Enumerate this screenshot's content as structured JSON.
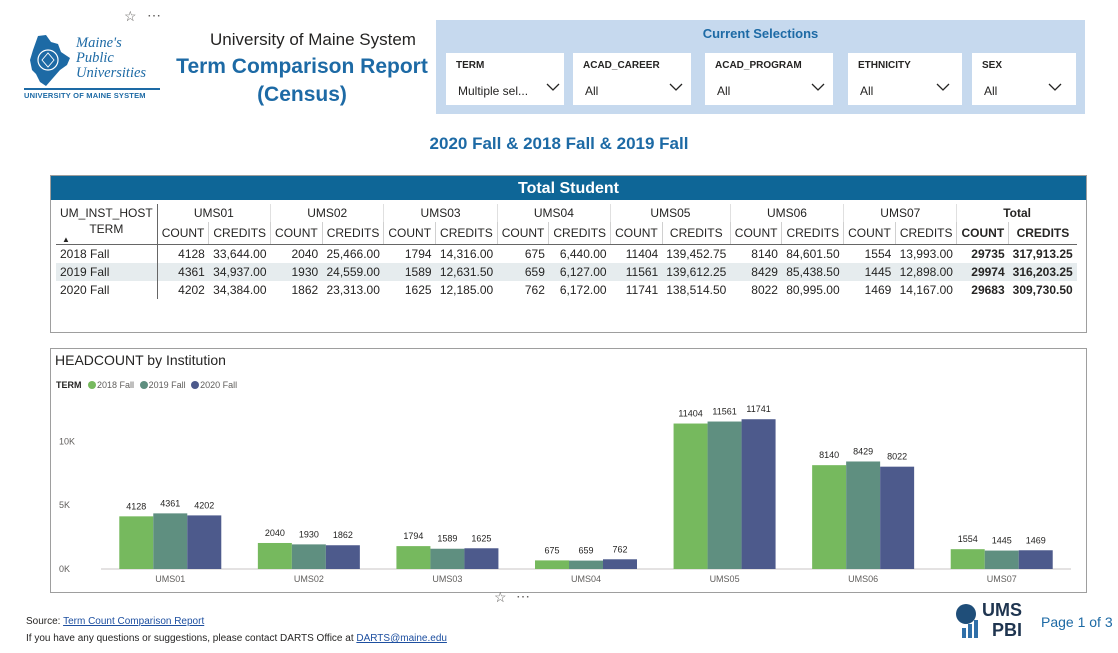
{
  "header": {
    "org_line": "University of Maine System",
    "report_title_line1": "Term Comparison Report",
    "report_title_line2": "(Census)",
    "pin_glyph": "☆",
    "more_glyph": "⋯",
    "logo": {
      "line1": "Maine's",
      "line2": "Public",
      "line3": "Universities",
      "tagline": "UNIVERSITY OF MAINE SYSTEM"
    }
  },
  "selections": {
    "title": "Current Selections",
    "slicers": [
      {
        "label": "TERM",
        "value": "Multiple sel..."
      },
      {
        "label": "ACAD_CAREER",
        "value": "All"
      },
      {
        "label": "ACAD_PROGRAM",
        "value": "All"
      },
      {
        "label": "ETHNICITY",
        "value": "All"
      },
      {
        "label": "SEX",
        "value": "All"
      }
    ]
  },
  "subtitle": "2020 Fall & 2018 Fall & 2019 Fall",
  "table": {
    "title": "Total Student",
    "row_header_top": "UM_INST_HOST",
    "row_header": "TERM",
    "sort_glyph": "▲",
    "institutions": [
      "UMS01",
      "UMS02",
      "UMS03",
      "UMS04",
      "UMS05",
      "UMS06",
      "UMS07"
    ],
    "total_label": "Total",
    "count_label": "COUNT",
    "credits_label": "CREDITS",
    "rows": [
      {
        "term": "2018 Fall",
        "cells": [
          "4128",
          "33,644.00",
          "2040",
          "25,466.00",
          "1794",
          "14,316.00",
          "675",
          "6,440.00",
          "11404",
          "139,452.75",
          "8140",
          "84,601.50",
          "1554",
          "13,993.00"
        ],
        "total_count": "29735",
        "total_credits": "317,913.25"
      },
      {
        "term": "2019 Fall",
        "cells": [
          "4361",
          "34,937.00",
          "1930",
          "24,559.00",
          "1589",
          "12,631.50",
          "659",
          "6,127.00",
          "11561",
          "139,612.25",
          "8429",
          "85,438.50",
          "1445",
          "12,898.00"
        ],
        "total_count": "29974",
        "total_credits": "316,203.25"
      },
      {
        "term": "2020 Fall",
        "cells": [
          "4202",
          "34,384.00",
          "1862",
          "23,313.00",
          "1625",
          "12,185.00",
          "762",
          "6,172.00",
          "11741",
          "138,514.50",
          "8022",
          "80,995.00",
          "1469",
          "14,167.00"
        ],
        "total_count": "29683",
        "total_credits": "309,730.50"
      }
    ]
  },
  "chart_data": {
    "type": "bar",
    "title": "HEADCOUNT by Institution",
    "legend_title": "TERM",
    "legend_position": "top-left",
    "categories": [
      "UMS01",
      "UMS02",
      "UMS03",
      "UMS04",
      "UMS05",
      "UMS06",
      "UMS07"
    ],
    "series": [
      {
        "name": "2018 Fall",
        "color": "#76b95e",
        "values": [
          4128,
          2040,
          1794,
          675,
          11404,
          8140,
          1554
        ]
      },
      {
        "name": "2019 Fall",
        "color": "#5f8f80",
        "values": [
          4361,
          1930,
          1589,
          659,
          11561,
          8429,
          1445
        ]
      },
      {
        "name": "2020 Fall",
        "color": "#4d5a8c",
        "values": [
          4202,
          1862,
          1625,
          762,
          11741,
          8022,
          1469
        ]
      }
    ],
    "y_ticks": [
      0,
      5000,
      10000
    ],
    "y_tick_labels": [
      "0K",
      "5K",
      "10K"
    ],
    "ylim": [
      0,
      12700
    ],
    "grid": false,
    "data_labels": true
  },
  "footer": {
    "source_prefix": "Source: ",
    "source_link": "Term Count Comparison Report",
    "contact_prefix": "If you have any questions or suggestions, please contact DARTS Office at ",
    "contact_email": "DARTS@maine.edu",
    "brand_line1": "UMS",
    "brand_line2": "PBI",
    "page": "Page 1 of 3"
  }
}
